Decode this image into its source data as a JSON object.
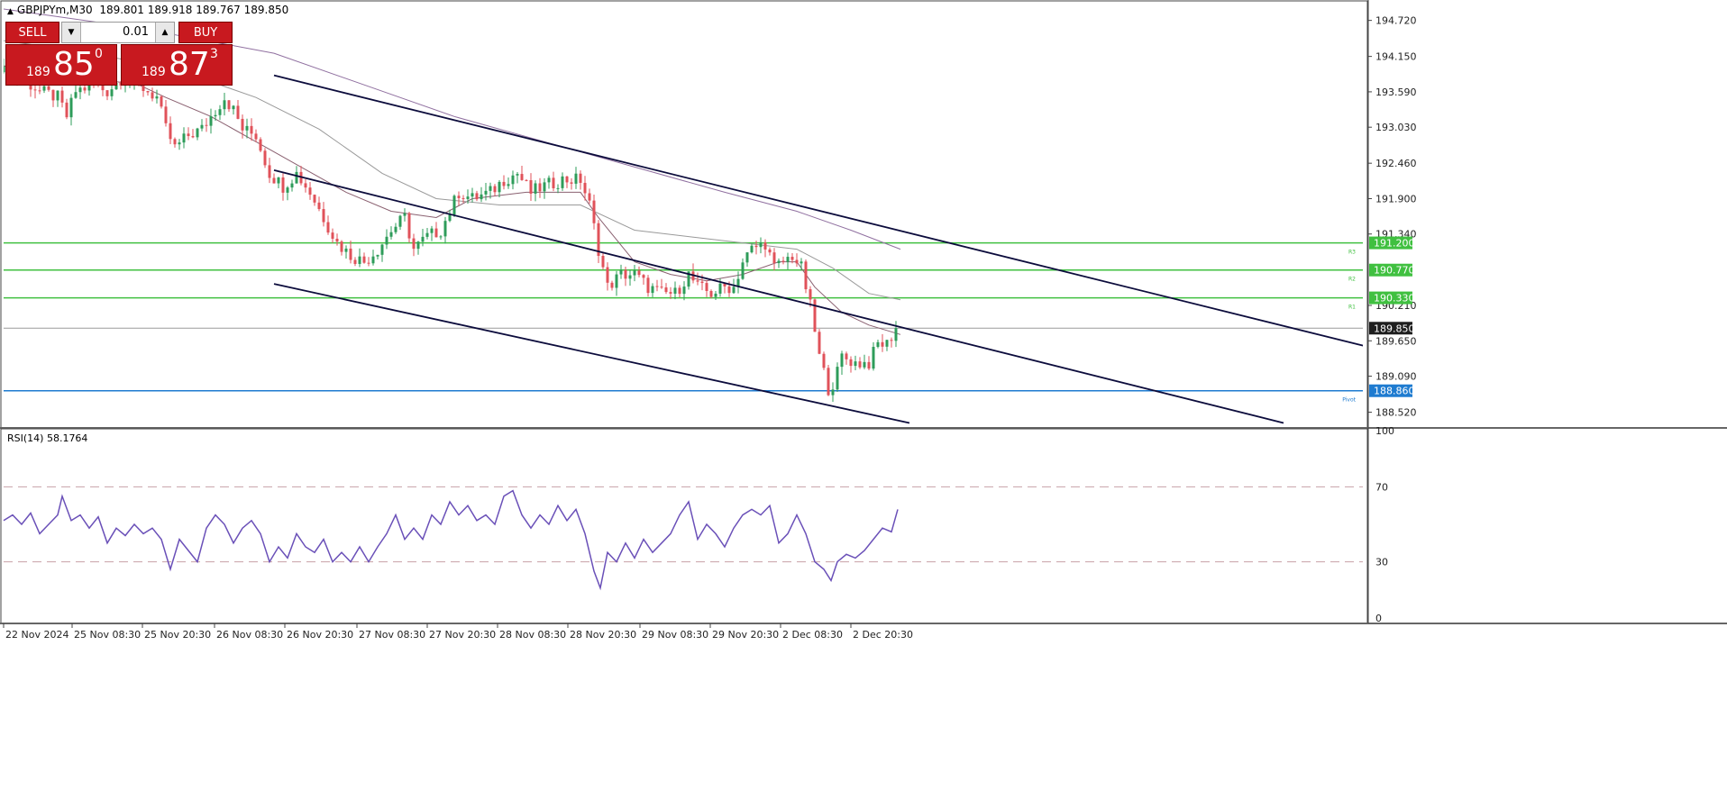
{
  "header": {
    "symbol": "GBPJPYm,M30",
    "ohlc": "189.801 189.918 189.767 189.850"
  },
  "trade_panel": {
    "sell_label": "SELL",
    "buy_label": "BUY",
    "lot_value": "0.01",
    "sell_quote": {
      "pre": "189",
      "big": "85",
      "sup": "0"
    },
    "buy_quote": {
      "pre": "189",
      "big": "87",
      "sup": "3"
    }
  },
  "colors": {
    "bull": "#2e9c5a",
    "bear": "#e0525a",
    "level": "#40c040",
    "pivot": "#1e7bd0",
    "channel": "#0c0c3c",
    "rsi": "#6a50b8",
    "price_tag": "#1e1e1e"
  },
  "chart_data": [
    {
      "type": "candlestick",
      "title": "GBPJPYm,M30",
      "ylim": [
        188.3,
        195.0
      ],
      "y_ticks": [
        "194.720",
        "194.150",
        "193.590",
        "193.030",
        "192.460",
        "191.900",
        "191.340",
        "190.210",
        "189.650",
        "189.090",
        "188.520"
      ],
      "x_ticks": [
        "22 Nov 2024",
        "25 Nov 08:30",
        "25 Nov 20:30",
        "26 Nov 08:30",
        "26 Nov 20:30",
        "27 Nov 08:30",
        "27 Nov 20:30",
        "28 Nov 08:30",
        "28 Nov 20:30",
        "29 Nov 08:30",
        "29 Nov 20:30",
        "2 Dec 08:30",
        "2 Dec 20:30"
      ],
      "close_path": [
        [
          0,
          193.9
        ],
        [
          20,
          193.8
        ],
        [
          40,
          193.6
        ],
        [
          60,
          193.5
        ],
        [
          70,
          193.2
        ],
        [
          80,
          193.6
        ],
        [
          100,
          193.7
        ],
        [
          115,
          193.6
        ],
        [
          130,
          193.8
        ],
        [
          150,
          193.7
        ],
        [
          170,
          193.5
        ],
        [
          180,
          193.0
        ],
        [
          190,
          192.7
        ],
        [
          205,
          192.9
        ],
        [
          220,
          193.0
        ],
        [
          235,
          193.3
        ],
        [
          245,
          193.5
        ],
        [
          255,
          193.3
        ],
        [
          265,
          193.0
        ],
        [
          280,
          192.9
        ],
        [
          295,
          192.3
        ],
        [
          310,
          192.1
        ],
        [
          325,
          192.3
        ],
        [
          340,
          192.0
        ],
        [
          355,
          191.6
        ],
        [
          370,
          191.2
        ],
        [
          385,
          191.0
        ],
        [
          400,
          190.9
        ],
        [
          415,
          191.1
        ],
        [
          430,
          191.4
        ],
        [
          445,
          191.6
        ],
        [
          455,
          191.1
        ],
        [
          470,
          191.3
        ],
        [
          485,
          191.4
        ],
        [
          495,
          191.7
        ],
        [
          505,
          192.0
        ],
        [
          520,
          191.9
        ],
        [
          540,
          192.0
        ],
        [
          555,
          192.2
        ],
        [
          570,
          192.3
        ],
        [
          585,
          192.0
        ],
        [
          600,
          192.1
        ],
        [
          620,
          192.2
        ],
        [
          640,
          192.2
        ],
        [
          650,
          191.8
        ],
        [
          660,
          191.1
        ],
        [
          670,
          190.5
        ],
        [
          685,
          190.7
        ],
        [
          700,
          190.7
        ],
        [
          715,
          190.5
        ],
        [
          730,
          190.4
        ],
        [
          745,
          190.4
        ],
        [
          760,
          190.7
        ],
        [
          770,
          190.5
        ],
        [
          785,
          190.4
        ],
        [
          800,
          190.5
        ],
        [
          810,
          190.5
        ],
        [
          820,
          190.9
        ],
        [
          830,
          191.1
        ],
        [
          845,
          191.2
        ],
        [
          855,
          190.8
        ],
        [
          865,
          190.9
        ],
        [
          875,
          191.0
        ],
        [
          885,
          190.8
        ],
        [
          895,
          190.2
        ],
        [
          905,
          189.4
        ],
        [
          915,
          188.9
        ],
        [
          922,
          189.0
        ],
        [
          930,
          189.4
        ],
        [
          945,
          189.3
        ],
        [
          960,
          189.3
        ],
        [
          970,
          189.6
        ],
        [
          980,
          189.6
        ],
        [
          990,
          189.85
        ]
      ],
      "series": [
        {
          "name": "",
          "color": "#8a6070",
          "points": [
            [
              0,
              194.0
            ],
            [
              50,
              193.9
            ],
            [
              100,
              193.8
            ],
            [
              150,
              193.7
            ],
            [
              180,
              193.5
            ],
            [
              230,
              193.2
            ],
            [
              280,
              192.8
            ],
            [
              330,
              192.4
            ],
            [
              380,
              192.0
            ],
            [
              430,
              191.7
            ],
            [
              480,
              191.6
            ],
            [
              520,
              191.9
            ],
            [
              580,
              192.0
            ],
            [
              640,
              192.0
            ],
            [
              660,
              191.6
            ],
            [
              700,
              190.9
            ],
            [
              740,
              190.7
            ],
            [
              780,
              190.6
            ],
            [
              820,
              190.7
            ],
            [
              860,
              190.9
            ],
            [
              880,
              190.9
            ],
            [
              900,
              190.5
            ],
            [
              930,
              190.1
            ],
            [
              960,
              189.9
            ],
            [
              995,
              189.75
            ]
          ]
        },
        {
          "name": "",
          "color": "#9a9a9a",
          "points": [
            [
              0,
              194.4
            ],
            [
              100,
              194.2
            ],
            [
              200,
              193.9
            ],
            [
              280,
              193.5
            ],
            [
              350,
              193.0
            ],
            [
              420,
              192.3
            ],
            [
              480,
              191.9
            ],
            [
              550,
              191.8
            ],
            [
              640,
              191.8
            ],
            [
              700,
              191.4
            ],
            [
              760,
              191.3
            ],
            [
              820,
              191.2
            ],
            [
              880,
              191.1
            ],
            [
              920,
              190.8
            ],
            [
              960,
              190.4
            ],
            [
              995,
              190.3
            ]
          ]
        },
        {
          "name": "",
          "color": "#9070a0",
          "points": [
            [
              0,
              194.9
            ],
            [
              150,
              194.6
            ],
            [
              300,
              194.2
            ],
            [
              400,
              193.7
            ],
            [
              500,
              193.2
            ],
            [
              600,
              192.8
            ],
            [
              700,
              192.4
            ],
            [
              800,
              192.0
            ],
            [
              880,
              191.7
            ],
            [
              940,
              191.4
            ],
            [
              995,
              191.1
            ]
          ]
        }
      ],
      "channels": [
        {
          "start": [
            300,
            193.85
          ],
          "end": [
            1515,
            189.55
          ]
        },
        {
          "start": [
            300,
            192.35
          ],
          "end": [
            1420,
            188.35
          ]
        },
        {
          "start": [
            300,
            190.55
          ],
          "end": [
            1005,
            188.35
          ]
        }
      ],
      "levels": [
        {
          "value": 191.2,
          "label": "191.200",
          "tag": "R3",
          "kind": "resistance"
        },
        {
          "value": 190.77,
          "label": "190.770",
          "tag": "R2",
          "kind": "resistance"
        },
        {
          "value": 190.33,
          "label": "190.330",
          "tag": "R1",
          "kind": "resistance"
        },
        {
          "value": 188.86,
          "label": "188.860",
          "tag": "Pivot",
          "kind": "pivot"
        }
      ],
      "current_price": {
        "value": 189.85,
        "label": "189.850"
      }
    },
    {
      "type": "line",
      "title": "RSI(14) 58.1764",
      "ylim": [
        0,
        100
      ],
      "y_ticks": [
        "100",
        "70",
        "30",
        "0"
      ],
      "levels": [
        70,
        30
      ],
      "series": [
        {
          "name": "RSI(14)",
          "points": [
            [
              0,
              52
            ],
            [
              10,
              55
            ],
            [
              20,
              50
            ],
            [
              30,
              56
            ],
            [
              40,
              45
            ],
            [
              50,
              50
            ],
            [
              60,
              55
            ],
            [
              65,
              65
            ],
            [
              75,
              52
            ],
            [
              85,
              55
            ],
            [
              95,
              48
            ],
            [
              105,
              54
            ],
            [
              115,
              40
            ],
            [
              125,
              48
            ],
            [
              135,
              44
            ],
            [
              145,
              50
            ],
            [
              155,
              45
            ],
            [
              165,
              48
            ],
            [
              175,
              42
            ],
            [
              185,
              26
            ],
            [
              195,
              42
            ],
            [
              205,
              36
            ],
            [
              215,
              30
            ],
            [
              225,
              48
            ],
            [
              235,
              55
            ],
            [
              245,
              50
            ],
            [
              255,
              40
            ],
            [
              265,
              48
            ],
            [
              275,
              52
            ],
            [
              285,
              45
            ],
            [
              295,
              30
            ],
            [
              305,
              38
            ],
            [
              315,
              32
            ],
            [
              325,
              45
            ],
            [
              335,
              38
            ],
            [
              345,
              35
            ],
            [
              355,
              42
            ],
            [
              365,
              30
            ],
            [
              375,
              35
            ],
            [
              385,
              30
            ],
            [
              395,
              38
            ],
            [
              405,
              30
            ],
            [
              415,
              38
            ],
            [
              425,
              45
            ],
            [
              435,
              55
            ],
            [
              445,
              42
            ],
            [
              455,
              48
            ],
            [
              465,
              42
            ],
            [
              475,
              55
            ],
            [
              485,
              50
            ],
            [
              495,
              62
            ],
            [
              505,
              55
            ],
            [
              515,
              60
            ],
            [
              525,
              52
            ],
            [
              535,
              55
            ],
            [
              545,
              50
            ],
            [
              555,
              65
            ],
            [
              565,
              68
            ],
            [
              575,
              55
            ],
            [
              585,
              48
            ],
            [
              595,
              55
            ],
            [
              605,
              50
            ],
            [
              615,
              60
            ],
            [
              625,
              52
            ],
            [
              635,
              58
            ],
            [
              645,
              45
            ],
            [
              655,
              25
            ],
            [
              662,
              16
            ],
            [
              670,
              35
            ],
            [
              680,
              30
            ],
            [
              690,
              40
            ],
            [
              700,
              32
            ],
            [
              710,
              42
            ],
            [
              720,
              35
            ],
            [
              730,
              40
            ],
            [
              740,
              45
            ],
            [
              750,
              55
            ],
            [
              760,
              62
            ],
            [
              770,
              42
            ],
            [
              780,
              50
            ],
            [
              790,
              45
            ],
            [
              800,
              38
            ],
            [
              810,
              48
            ],
            [
              820,
              55
            ],
            [
              830,
              58
            ],
            [
              840,
              55
            ],
            [
              850,
              60
            ],
            [
              860,
              40
            ],
            [
              870,
              45
            ],
            [
              880,
              55
            ],
            [
              890,
              45
            ],
            [
              900,
              30
            ],
            [
              910,
              26
            ],
            [
              918,
              20
            ],
            [
              925,
              30
            ],
            [
              935,
              34
            ],
            [
              945,
              32
            ],
            [
              955,
              36
            ],
            [
              965,
              42
            ],
            [
              975,
              48
            ],
            [
              985,
              46
            ],
            [
              992,
              58
            ]
          ]
        }
      ]
    }
  ]
}
